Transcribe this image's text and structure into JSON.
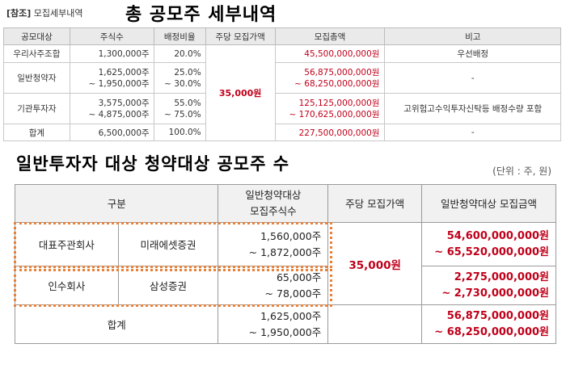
{
  "ref": {
    "bracket": "[참조]",
    "text": "모집세부내역"
  },
  "title_total": "총 공모주 세부내역",
  "title_general": "일반투자자 대상 청약대상 공모주 수",
  "unit_label": "(단위 : 주, 원)",
  "table1": {
    "headers": [
      "공모대상",
      "주식수",
      "배정비율",
      "주당 모집가액",
      "모집총액",
      "비고"
    ],
    "price": "35,000원",
    "rows": [
      {
        "target": "우리사주조합",
        "shares": "1,300,000주",
        "ratio": "20.0%",
        "total": "45,500,000,000원",
        "note": "우선배정"
      },
      {
        "target": "일반청약자",
        "shares": "1,625,000주",
        "shares2": "~ 1,950,000주",
        "ratio": "25.0%",
        "ratio2": "~ 30.0%",
        "total": "56,875,000,000원",
        "total2": "~ 68,250,000,000원",
        "note": "-"
      },
      {
        "target": "기관투자자",
        "shares": "3,575,000주",
        "shares2": "~ 4,875,000주",
        "ratio": "55.0%",
        "ratio2": "~ 75.0%",
        "total": "125,125,000,000원",
        "total2": "~ 170,625,000,000원",
        "note": "고위험고수익투자신탁등 배정수량 포함"
      },
      {
        "target": "합계",
        "shares": "6,500,000주",
        "ratio": "100.0%",
        "total": "227,500,000,000원",
        "note": "-"
      }
    ]
  },
  "table2": {
    "headers": {
      "category": "구분",
      "shares_line1": "일반청약대상",
      "shares_line2": "모집주식수",
      "price": "주당 모집가액",
      "amount": "일반청약대상 모집금액"
    },
    "price": "35,000원",
    "rows": [
      {
        "role": "대표주관회사",
        "firm": "미래에셋증권",
        "shares": "1,560,000주",
        "shares2": "~ 1,872,000주",
        "amount": "54,600,000,000원",
        "amount2": "~ 65,520,000,000원"
      },
      {
        "role": "인수회사",
        "firm": "삼성증권",
        "shares": "65,000주",
        "shares2": "~ 78,000주",
        "amount": "2,275,000,000원",
        "amount2": "~ 2,730,000,000원"
      }
    ],
    "total": {
      "label": "합계",
      "shares": "1,625,000주",
      "shares2": "~ 1,950,000주",
      "amount": "56,875,000,000원",
      "amount2": "~ 68,250,000,000원"
    }
  }
}
